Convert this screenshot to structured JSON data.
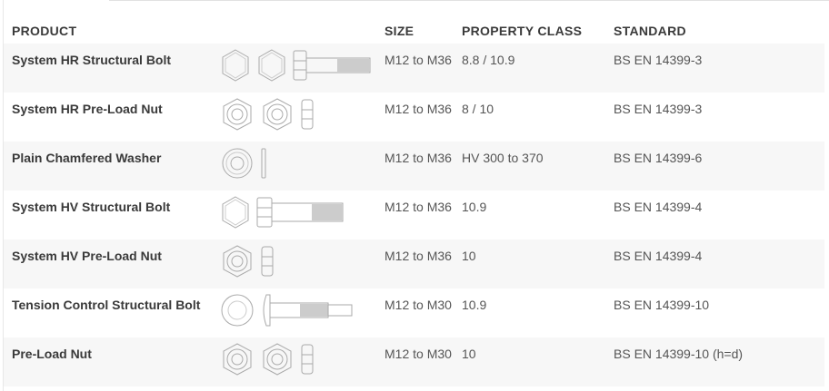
{
  "headers": {
    "product": "PRODUCT",
    "size": "SIZE",
    "property_class": "PROPERTY CLASS",
    "standard": "STANDARD"
  },
  "rows": [
    {
      "product": "System HR Structural Bolt",
      "size": "M12 to M36",
      "property_class": "8.8 / 10.9",
      "standard": "BS EN 14399-3",
      "icons": [
        "hex-face-icon",
        "hex-face-icon",
        "hex-bolt-icon"
      ]
    },
    {
      "product": "System HR Pre-Load Nut",
      "size": "M12 to M36",
      "property_class": "8 / 10",
      "standard": "BS EN 14399-3",
      "icons": [
        "nut-face-icon",
        "nut-face-icon",
        "nut-side-icon"
      ]
    },
    {
      "product": "Plain Chamfered Washer",
      "size": "M12 to M36",
      "property_class": "HV 300 to 370",
      "standard": "BS EN 14399-6",
      "icons": [
        "washer-face-icon",
        "washer-side-icon"
      ]
    },
    {
      "product": "System HV Structural Bolt",
      "size": "M12 to M36",
      "property_class": "10.9",
      "standard": "BS EN 14399-4",
      "icons": [
        "hex-face-icon",
        "hex-bolt-short-thread-icon"
      ]
    },
    {
      "product": "System HV Pre-Load Nut",
      "size": "M12 to M36",
      "property_class": "10",
      "standard": "BS EN 14399-4",
      "icons": [
        "nut-face-icon",
        "nut-side-icon"
      ]
    },
    {
      "product": "Tension Control Structural Bolt",
      "size": "M12 to M30",
      "property_class": "10.9",
      "standard": "BS EN 14399-10",
      "icons": [
        "round-head-face-icon",
        "tension-control-bolt-icon"
      ]
    },
    {
      "product": "Pre-Load Nut",
      "size": "M12 to M30",
      "property_class": "10",
      "standard": "BS EN 14399-10 (h=d)",
      "icons": [
        "nut-face-icon",
        "nut-face-icon",
        "nut-side-icon"
      ]
    }
  ]
}
